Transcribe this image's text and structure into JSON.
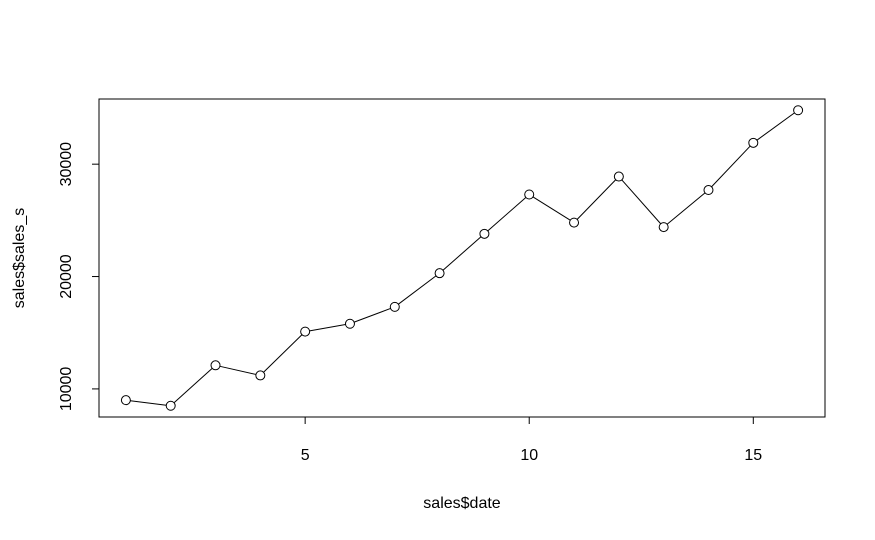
{
  "chart_data": {
    "type": "line",
    "title": "",
    "xlabel": "sales$date",
    "ylabel": "sales$sales_s",
    "x": [
      1,
      2,
      3,
      4,
      5,
      6,
      7,
      8,
      9,
      10,
      11,
      12,
      13,
      14,
      15,
      16
    ],
    "series": [
      {
        "values": [
          9000,
          8500,
          12100,
          11200,
          15100,
          15800,
          17300,
          20300,
          23800,
          27300,
          24800,
          28900,
          24400,
          27700,
          31900,
          34800
        ]
      }
    ],
    "xlim": [
      0.4,
      16.6
    ],
    "ylim": [
      7500,
      35800
    ],
    "x_ticks": [
      5,
      10,
      15
    ],
    "y_ticks": [
      10000,
      20000,
      30000
    ],
    "x_tick_labels": [
      "5",
      "10",
      "15"
    ],
    "y_tick_labels": [
      "10000",
      "20000",
      "30000"
    ],
    "marker": "open-circle",
    "line_color": "#000000",
    "grid": false,
    "legend": "none"
  }
}
